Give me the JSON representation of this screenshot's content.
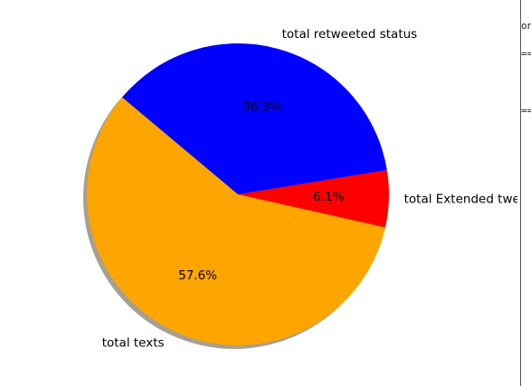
{
  "chart_data": {
    "type": "pie",
    "title": "",
    "slices": [
      {
        "label": "total texts",
        "value": 57.6,
        "pct_label": "57.6%",
        "color": "#FFA500"
      },
      {
        "label": "total Extended tweets",
        "value": 6.1,
        "pct_label": "6.1%",
        "color": "#FF0000"
      },
      {
        "label": "total retweeted status",
        "value": 36.3,
        "pct_label": "36.3%",
        "color": "#0000FF"
      }
    ],
    "start_angle_deg": 140,
    "direction": "counterclockwise",
    "shadow": true,
    "legend": "none"
  },
  "background_window": {
    "fragments": [
      "on",
      "==",
      "=="
    ]
  }
}
